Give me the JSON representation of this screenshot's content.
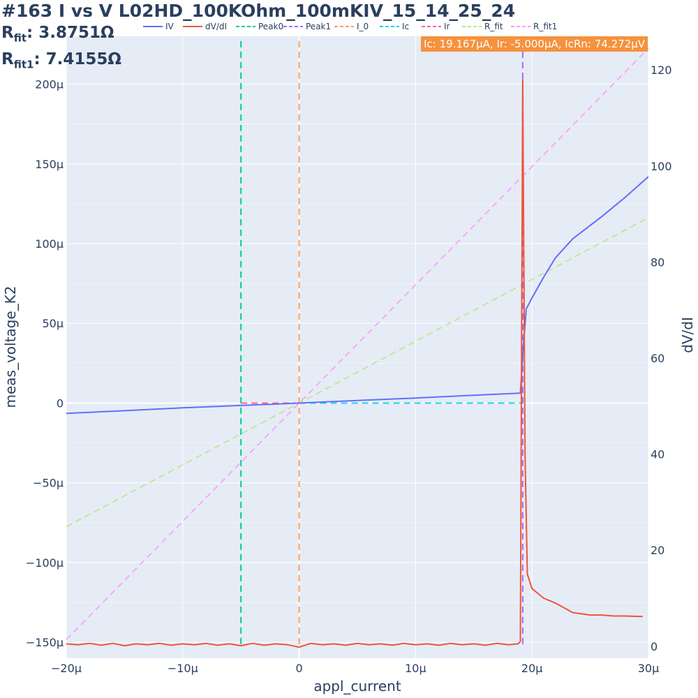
{
  "title": {
    "line1": "#163 I vs V L02HD_100KOhm_100mKIV_15_14_25_24",
    "rfit_label": "R",
    "rfit_sub": "fit",
    "rfit_value": ": 3.8751Ω",
    "rfit1_label": "R",
    "rfit1_sub": "fit1",
    "rfit1_value": ": 7.4155Ω"
  },
  "annotation": "Ic: 19.167μA, Ir: -5.000μA, IcRn: 74.272μV",
  "colors": {
    "plot_bg": "#e5ecf6",
    "grid": "#ffffff",
    "text": "#2a3f5f",
    "annotation_bg": "#f5923e"
  },
  "chart_data": {
    "type": "line",
    "xlabel": "appl_current",
    "ylabel": "meas_voltage_K2",
    "y2label": "dV/dI",
    "xlim": [
      -2e-05,
      3e-05
    ],
    "ylim": [
      -0.00016,
      0.00023
    ],
    "y2lim": [
      -2.5,
      127
    ],
    "x_ticks": [
      "−20μ",
      "−10μ",
      "0",
      "10μ",
      "20μ",
      "30μ"
    ],
    "x_tick_values": [
      -2e-05,
      -1e-05,
      0,
      1e-05,
      2e-05,
      3e-05
    ],
    "y_ticks": [
      "−150μ",
      "−100μ",
      "−50μ",
      "0",
      "50μ",
      "100μ",
      "150μ",
      "200μ"
    ],
    "y_tick_values": [
      -0.00015,
      -0.0001,
      -5e-05,
      0,
      5e-05,
      0.0001,
      0.00015,
      0.0002
    ],
    "y2_ticks": [
      "0",
      "20",
      "40",
      "60",
      "80",
      "100",
      "120"
    ],
    "y2_tick_values": [
      0,
      20,
      40,
      60,
      80,
      100,
      120
    ],
    "legend": [
      "IV",
      "dV/dI",
      "Peak0",
      "Peak1",
      "I_0",
      "Ic",
      "Ir",
      "R_fit",
      "R_fit1"
    ],
    "legend_placement": "top",
    "series": [
      {
        "name": "IV",
        "axis": "y",
        "color": "#636efa",
        "dash": "solid",
        "x": [
          -2e-05,
          -1.5e-05,
          -1e-05,
          -5e-06,
          0,
          5e-06,
          1e-05,
          1.5e-05,
          1.9e-05,
          1.92e-05,
          1.95e-05,
          2e-05,
          2.1e-05,
          2.2e-05,
          2.35e-05,
          2.6e-05,
          2.8e-05,
          3e-05
        ],
        "y": [
          -6.5e-06,
          -4.8e-06,
          -3e-06,
          -1.5e-06,
          0,
          1.6e-06,
          3.2e-06,
          4.9e-06,
          6.2e-06,
          3e-05,
          5.9e-05,
          6.6e-05,
          7.9e-05,
          9.1e-05,
          0.000103,
          0.000117,
          0.000129,
          0.000142
        ]
      },
      {
        "name": "dV/dI",
        "axis": "y2",
        "color": "#ef553b",
        "dash": "solid",
        "x": [
          -2e-05,
          -1.9e-05,
          -1.8e-05,
          -1.7e-05,
          -1.6e-05,
          -1.5e-05,
          -1.4e-05,
          -1.3e-05,
          -1.2e-05,
          -1.1e-05,
          -1e-05,
          -9e-06,
          -8e-06,
          -7e-06,
          -6e-06,
          -5e-06,
          -4e-06,
          -3e-06,
          -2e-06,
          -1e-06,
          0,
          1e-06,
          2e-06,
          3e-06,
          4e-06,
          5e-06,
          6e-06,
          7e-06,
          8e-06,
          9e-06,
          1e-05,
          1.1e-05,
          1.2e-05,
          1.3e-05,
          1.4e-05,
          1.5e-05,
          1.6e-05,
          1.7e-05,
          1.8e-05,
          1.88e-05,
          1.9e-05,
          1.92e-05,
          1.94e-05,
          1.96e-05,
          2e-05,
          2.05e-05,
          2.1e-05,
          2.2e-05,
          2.35e-05,
          2.5e-05,
          2.6e-05,
          2.7e-05,
          2.8e-05,
          2.9e-05,
          2.95e-05
        ],
        "y": [
          0.5,
          0.3,
          0.6,
          0.2,
          0.6,
          0.1,
          0.5,
          0.3,
          0.6,
          0.2,
          0.5,
          0.3,
          0.6,
          0.2,
          0.5,
          0.1,
          0.6,
          0.2,
          0.5,
          0.3,
          -0.2,
          0.6,
          0.3,
          0.5,
          0.2,
          0.6,
          0.3,
          0.5,
          0.2,
          0.6,
          0.3,
          0.5,
          0.2,
          0.6,
          0.3,
          0.5,
          0.2,
          0.6,
          0.3,
          0.5,
          1.0,
          118,
          40,
          15,
          12,
          11,
          10,
          9,
          7,
          6.5,
          6.5,
          6.3,
          6.3,
          6.2,
          6.2
        ]
      }
    ],
    "vlines": [
      {
        "name": "Peak0",
        "x": -5e-06,
        "color": "#00cc96",
        "dash": "dash"
      },
      {
        "name": "Peak1",
        "x": 1.92e-05,
        "color": "#ab63fa",
        "dash": "dash"
      },
      {
        "name": "I_0",
        "x": 0,
        "color": "#ffa15a",
        "dash": "dash"
      }
    ],
    "hlines": [
      {
        "name": "Ic",
        "x": [
          0,
          1.92e-05
        ],
        "y": 0,
        "color": "#19d3f3",
        "dash": "dash"
      },
      {
        "name": "Ir",
        "x": [
          -5e-06,
          0
        ],
        "y": 0,
        "color": "#ff6692",
        "dash": "dash"
      }
    ],
    "fits": [
      {
        "name": "R_fit",
        "slope": 3.8751,
        "color": "#b6e880",
        "dash": "dash"
      },
      {
        "name": "R_fit1",
        "slope": 7.4155,
        "color": "#ff97ff",
        "dash": "dash"
      }
    ]
  }
}
